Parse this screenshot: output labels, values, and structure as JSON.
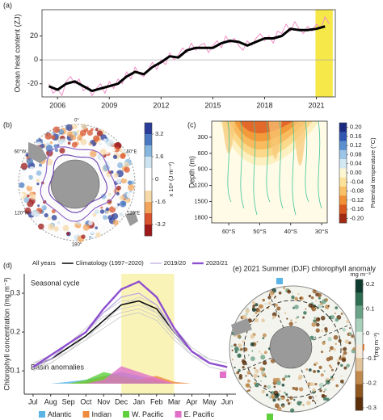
{
  "chart_data": [
    {
      "type": "line",
      "label": "(a)",
      "y_label": "Ocean heat content (ZJ)",
      "xlim": [
        2005.1,
        2022.1
      ],
      "ylim": [
        -31,
        42
      ],
      "xticks": [
        2006,
        2009,
        2012,
        2015,
        2018,
        2021
      ],
      "yticks": [
        -20,
        0,
        20
      ],
      "highlight": [
        2020.95,
        2021.95
      ],
      "highlight_color": "#f7e84a",
      "zero_line": true,
      "series": [
        {
          "color": "#f08fc8",
          "width": 1,
          "x": [
            2005.5,
            2005.75,
            2006,
            2006.25,
            2006.5,
            2006.75,
            2007,
            2007.25,
            2007.5,
            2007.75,
            2008,
            2008.25,
            2008.5,
            2008.75,
            2009,
            2009.25,
            2009.5,
            2009.75,
            2010,
            2010.25,
            2010.5,
            2010.75,
            2011,
            2011.25,
            2011.5,
            2011.75,
            2012,
            2012.25,
            2012.5,
            2012.75,
            2013,
            2013.25,
            2013.5,
            2013.75,
            2014,
            2014.25,
            2014.5,
            2014.75,
            2015,
            2015.25,
            2015.5,
            2015.75,
            2016,
            2016.25,
            2016.5,
            2016.75,
            2017,
            2017.25,
            2017.5,
            2017.75,
            2018,
            2018.25,
            2018.5,
            2018.75,
            2019,
            2019.25,
            2019.5,
            2019.75,
            2020,
            2020.25,
            2020.5,
            2020.75,
            2021,
            2021.25,
            2021.5,
            2021.75
          ],
          "values": [
            -20,
            -28,
            -24,
            -30,
            -18,
            -14,
            -20,
            -16,
            -26,
            -22,
            -30,
            -24,
            -20,
            -28,
            -18,
            -24,
            -16,
            -20,
            -10,
            -16,
            -6,
            -12,
            -14,
            -8,
            -2,
            -8,
            0,
            -4,
            6,
            0,
            4,
            10,
            6,
            14,
            8,
            12,
            14,
            6,
            12,
            16,
            10,
            20,
            14,
            18,
            12,
            8,
            16,
            12,
            18,
            22,
            16,
            20,
            14,
            24,
            22,
            30,
            24,
            32,
            26,
            22,
            28,
            24,
            30,
            26,
            36,
            30
          ]
        },
        {
          "color": "#000000",
          "width": 3,
          "x": [
            2005.5,
            2006,
            2006.5,
            2007,
            2007.5,
            2008,
            2008.5,
            2009,
            2009.5,
            2010,
            2010.5,
            2011,
            2011.5,
            2012,
            2012.5,
            2013,
            2013.5,
            2014,
            2014.5,
            2015,
            2015.5,
            2016,
            2016.5,
            2017,
            2017.5,
            2018,
            2018.5,
            2019,
            2019.5,
            2020,
            2020.5,
            2021,
            2021.5
          ],
          "values": [
            -22,
            -25,
            -20,
            -18,
            -22,
            -26,
            -24,
            -22,
            -20,
            -14,
            -10,
            -12,
            -6,
            -2,
            3,
            2,
            8,
            10,
            10,
            10,
            14,
            16,
            15,
            12,
            15,
            18,
            18,
            20,
            26,
            25,
            25,
            26,
            28
          ]
        }
      ]
    },
    {
      "type": "map",
      "label": "(b)",
      "map_labels": [
        "0°",
        "60°W",
        "60°E",
        "120°W",
        "120°E",
        "180°"
      ],
      "colorbar": {
        "label": "x 10⁹ (J m⁻²)",
        "lim": [
          -4,
          4
        ],
        "ticks": [
          3.2,
          1.6,
          0,
          -1.6,
          -3.2
        ],
        "colors": [
          "#2a3c9a",
          "#4a78c0",
          "#86b6dd",
          "#cde3ef",
          "#ffffff",
          "#ffffff",
          "#f7d9a8",
          "#f2a45c",
          "#d9542e",
          "#9e1a1a"
        ]
      }
    },
    {
      "type": "section",
      "label": "(c)",
      "y_label": "Depth (m)",
      "xlim": [
        -65.5,
        -28.2
      ],
      "ylim": [
        0,
        1900
      ],
      "xticks": [
        {
          "value": -60,
          "label": "60°S"
        },
        {
          "value": -50,
          "label": "50°S"
        },
        {
          "value": -40,
          "label": "40°S"
        },
        {
          "value": -30,
          "label": "30°S"
        }
      ],
      "yticks": [
        300,
        600,
        900,
        1200,
        1500,
        1800
      ],
      "colorbar": {
        "label": "Potential temperature (°C)",
        "lim": [
          -0.22,
          0.22
        ],
        "ticks": [
          {
            "value": 0.2,
            "label": "0.20"
          },
          0.16,
          0.12,
          0.08,
          0.04,
          {
            "value": 0,
            "label": "0.00"
          },
          -0.04,
          -0.08,
          -0.12,
          -0.16,
          {
            "value": -0.2,
            "label": "-0.20"
          }
        ],
        "colors": [
          "#1b2a80",
          "#2f56b0",
          "#5b8fd0",
          "#9cc4e6",
          "#d3e8f3",
          "#fdf6d3",
          "#fbe29a",
          "#f9c067",
          "#f19036",
          "#d9581f",
          "#a32a12"
        ]
      }
    },
    {
      "type": "line",
      "label": "(d)",
      "y_label": "Chlorophyll concentration (mg m⁻³)",
      "annotations": [
        "Seasonal cycle",
        "Basin anomalies"
      ],
      "categories": [
        "Jul",
        "Aug",
        "Sep",
        "Oct",
        "Nov",
        "Dec",
        "Jan",
        "Feb",
        "Mar",
        "Apr",
        "May",
        "Jun"
      ],
      "ylim": [
        0.04,
        0.35
      ],
      "yticks": [
        0.1,
        0.2,
        0.3
      ],
      "y2lim": [
        -0.027,
        0.283
      ],
      "highlight": [
        5,
        8
      ],
      "highlight_color": "#faf3b8",
      "series": [
        {
          "name": "All years",
          "color": "#c8c8c8",
          "width": 0.8,
          "values": [
            [
              0.11,
              0.12,
              0.15,
              0.18,
              0.21,
              0.24,
              0.25,
              0.23,
              0.18,
              0.14,
              0.12,
              0.11
            ],
            [
              0.12,
              0.13,
              0.16,
              0.2,
              0.24,
              0.26,
              0.27,
              0.25,
              0.2,
              0.15,
              0.12,
              0.11
            ],
            [
              0.11,
              0.13,
              0.15,
              0.19,
              0.22,
              0.27,
              0.29,
              0.27,
              0.21,
              0.16,
              0.13,
              0.12
            ],
            [
              0.12,
              0.14,
              0.17,
              0.21,
              0.25,
              0.28,
              0.28,
              0.25,
              0.19,
              0.15,
              0.13,
              0.12
            ],
            [
              0.1,
              0.12,
              0.15,
              0.18,
              0.23,
              0.25,
              0.26,
              0.24,
              0.19,
              0.14,
              0.11,
              0.1
            ]
          ]
        },
        {
          "name": "Climatology (1997−2020)",
          "color": "#111111",
          "width": 1.6,
          "values": [
            0.11,
            0.13,
            0.16,
            0.19,
            0.23,
            0.27,
            0.28,
            0.26,
            0.2,
            0.15,
            0.12,
            0.11
          ]
        },
        {
          "name": "2019/20",
          "color": "#b9a6e0",
          "width": 1.2,
          "values": [
            0.11,
            0.13,
            0.17,
            0.2,
            0.25,
            0.29,
            0.3,
            0.27,
            0.2,
            0.15,
            0.12,
            0.11
          ]
        },
        {
          "name": "2020/21",
          "color": "#8e4fcf",
          "width": 2.4,
          "values": [
            0.11,
            0.14,
            0.17,
            0.2,
            0.26,
            0.31,
            0.33,
            0.29,
            0.21,
            0.15,
            0.12,
            0.11
          ]
        },
        {
          "name": "Atlantic",
          "color": "#5ab4e5",
          "axis": "y2",
          "values": [
            0,
            0,
            0.005,
            0.01,
            0.02,
            0.03,
            0.02,
            0.01,
            0,
            0,
            0,
            0
          ]
        },
        {
          "name": "Indian",
          "color": "#f08a3c",
          "axis": "y2",
          "values": [
            0,
            0,
            0,
            0.005,
            0.02,
            0.015,
            0.01,
            0.02,
            0.005,
            0,
            0,
            0
          ]
        },
        {
          "name": "W. Pacific",
          "color": "#5fcf3c",
          "axis": "y2",
          "values": [
            0,
            0,
            0,
            0.01,
            0.03,
            0.02,
            0.01,
            0.005,
            0,
            0,
            0,
            0
          ]
        },
        {
          "name": "E. Pacific",
          "color": "#e070c8",
          "axis": "y2",
          "values": [
            0,
            0,
            0,
            0,
            0.01,
            0.045,
            0.03,
            0.015,
            0,
            0,
            0,
            0
          ]
        }
      ]
    },
    {
      "type": "map",
      "title": "(e) 2021 Summer (DJF) chlorophyll anomaly",
      "unit": "mg m⁻³",
      "colorbar": {
        "label": "(mg m⁻³)",
        "lim": [
          -0.31,
          0.22
        ],
        "ticks": [
          0.2,
          0.1,
          0,
          -0.1,
          -0.2,
          -0.3
        ],
        "colors": [
          "#0f3b2e",
          "#2f6e52",
          "#6aa387",
          "#a9d0bb",
          "#e3f0e8",
          "#f6eadb",
          "#e2c49a",
          "#c18a4c",
          "#8f5620",
          "#5a2f0a"
        ]
      }
    }
  ]
}
